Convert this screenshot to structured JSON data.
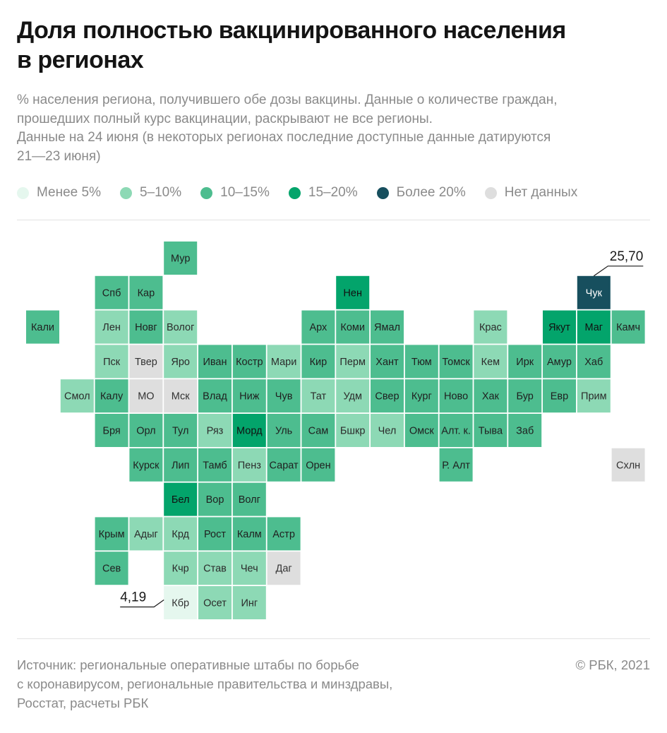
{
  "title_lines": [
    "Доля полностью вакцинированного населения",
    "в регионах"
  ],
  "subtitle_lines": [
    "% населения региона, получившего обе дозы вакцины. Данные о количестве граждан,",
    "прошедших полный курс вакцинации, раскрывают не все регионы.",
    "Данные на 24 июня (в некоторых регионах последние доступные данные датируются",
    "21—23 июня)"
  ],
  "legend": [
    {
      "label": "Менее 5%",
      "color": "#e5f7ee"
    },
    {
      "label": "5–10%",
      "color": "#8dd9b5"
    },
    {
      "label": "10–15%",
      "color": "#4dbd8f"
    },
    {
      "label": "15–20%",
      "color": "#03a46b"
    },
    {
      "label": "Более 20%",
      "color": "#174f5e"
    },
    {
      "label": "Нет данных",
      "color": "#dedede"
    }
  ],
  "chart_data": {
    "type": "heatmap",
    "value_unit": "%",
    "annotations": [
      {
        "region": "Чук",
        "text": "25,70"
      },
      {
        "region": "Кбр",
        "text": "4,19"
      }
    ],
    "cells": [
      {
        "label": "Мур",
        "col": 5,
        "row": 0,
        "cat": 2
      },
      {
        "label": "Спб",
        "col": 3,
        "row": 1,
        "cat": 2
      },
      {
        "label": "Кар",
        "col": 4,
        "row": 1,
        "cat": 2
      },
      {
        "label": "Нен",
        "col": 10,
        "row": 1,
        "cat": 3
      },
      {
        "label": "Чук",
        "col": 17,
        "row": 1,
        "cat": 4
      },
      {
        "label": "Кали",
        "col": 1,
        "row": 2,
        "cat": 2
      },
      {
        "label": "Лен",
        "col": 3,
        "row": 2,
        "cat": 1
      },
      {
        "label": "Новг",
        "col": 4,
        "row": 2,
        "cat": 2
      },
      {
        "label": "Волог",
        "col": 5,
        "row": 2,
        "cat": 1
      },
      {
        "label": "Арх",
        "col": 9,
        "row": 2,
        "cat": 2
      },
      {
        "label": "Коми",
        "col": 10,
        "row": 2,
        "cat": 2
      },
      {
        "label": "Ямал",
        "col": 11,
        "row": 2,
        "cat": 2
      },
      {
        "label": "Крас",
        "col": 14,
        "row": 2,
        "cat": 1
      },
      {
        "label": "Якут",
        "col": 16,
        "row": 2,
        "cat": 3
      },
      {
        "label": "Маг",
        "col": 17,
        "row": 2,
        "cat": 3
      },
      {
        "label": "Камч",
        "col": 18,
        "row": 2,
        "cat": 2
      },
      {
        "label": "Пск",
        "col": 3,
        "row": 3,
        "cat": 1
      },
      {
        "label": "Твер",
        "col": 4,
        "row": 3,
        "cat": 5
      },
      {
        "label": "Яро",
        "col": 5,
        "row": 3,
        "cat": 1
      },
      {
        "label": "Иван",
        "col": 6,
        "row": 3,
        "cat": 2
      },
      {
        "label": "Костр",
        "col": 7,
        "row": 3,
        "cat": 2
      },
      {
        "label": "Мари",
        "col": 8,
        "row": 3,
        "cat": 1
      },
      {
        "label": "Кир",
        "col": 9,
        "row": 3,
        "cat": 2
      },
      {
        "label": "Перм",
        "col": 10,
        "row": 3,
        "cat": 1
      },
      {
        "label": "Хант",
        "col": 11,
        "row": 3,
        "cat": 2
      },
      {
        "label": "Тюм",
        "col": 12,
        "row": 3,
        "cat": 2
      },
      {
        "label": "Томск",
        "col": 13,
        "row": 3,
        "cat": 2
      },
      {
        "label": "Кем",
        "col": 14,
        "row": 3,
        "cat": 1
      },
      {
        "label": "Ирк",
        "col": 15,
        "row": 3,
        "cat": 2
      },
      {
        "label": "Амур",
        "col": 16,
        "row": 3,
        "cat": 2
      },
      {
        "label": "Хаб",
        "col": 17,
        "row": 3,
        "cat": 2
      },
      {
        "label": "Смол",
        "col": 2,
        "row": 4,
        "cat": 1
      },
      {
        "label": "Калу",
        "col": 3,
        "row": 4,
        "cat": 2
      },
      {
        "label": "МО",
        "col": 4,
        "row": 4,
        "cat": 5
      },
      {
        "label": "Мск",
        "col": 5,
        "row": 4,
        "cat": 5
      },
      {
        "label": "Влад",
        "col": 6,
        "row": 4,
        "cat": 2
      },
      {
        "label": "Ниж",
        "col": 7,
        "row": 4,
        "cat": 2
      },
      {
        "label": "Чув",
        "col": 8,
        "row": 4,
        "cat": 2
      },
      {
        "label": "Тат",
        "col": 9,
        "row": 4,
        "cat": 1
      },
      {
        "label": "Удм",
        "col": 10,
        "row": 4,
        "cat": 1
      },
      {
        "label": "Свер",
        "col": 11,
        "row": 4,
        "cat": 2
      },
      {
        "label": "Кург",
        "col": 12,
        "row": 4,
        "cat": 2
      },
      {
        "label": "Ново",
        "col": 13,
        "row": 4,
        "cat": 2
      },
      {
        "label": "Хак",
        "col": 14,
        "row": 4,
        "cat": 2
      },
      {
        "label": "Бур",
        "col": 15,
        "row": 4,
        "cat": 2
      },
      {
        "label": "Евр",
        "col": 16,
        "row": 4,
        "cat": 2
      },
      {
        "label": "Прим",
        "col": 17,
        "row": 4,
        "cat": 1
      },
      {
        "label": "Бря",
        "col": 3,
        "row": 5,
        "cat": 2
      },
      {
        "label": "Орл",
        "col": 4,
        "row": 5,
        "cat": 2
      },
      {
        "label": "Тул",
        "col": 5,
        "row": 5,
        "cat": 2
      },
      {
        "label": "Ряз",
        "col": 6,
        "row": 5,
        "cat": 1
      },
      {
        "label": "Морд",
        "col": 7,
        "row": 5,
        "cat": 3
      },
      {
        "label": "Уль",
        "col": 8,
        "row": 5,
        "cat": 2
      },
      {
        "label": "Сам",
        "col": 9,
        "row": 5,
        "cat": 2
      },
      {
        "label": "Бшкр",
        "col": 10,
        "row": 5,
        "cat": 1
      },
      {
        "label": "Чел",
        "col": 11,
        "row": 5,
        "cat": 1
      },
      {
        "label": "Омск",
        "col": 12,
        "row": 5,
        "cat": 2
      },
      {
        "label": "Алт. к.",
        "col": 13,
        "row": 5,
        "cat": 2
      },
      {
        "label": "Тыва",
        "col": 14,
        "row": 5,
        "cat": 2
      },
      {
        "label": "Заб",
        "col": 15,
        "row": 5,
        "cat": 2
      },
      {
        "label": "Курск",
        "col": 4,
        "row": 6,
        "cat": 2
      },
      {
        "label": "Лип",
        "col": 5,
        "row": 6,
        "cat": 2
      },
      {
        "label": "Тамб",
        "col": 6,
        "row": 6,
        "cat": 2
      },
      {
        "label": "Пенз",
        "col": 7,
        "row": 6,
        "cat": 1
      },
      {
        "label": "Сарат",
        "col": 8,
        "row": 6,
        "cat": 2
      },
      {
        "label": "Орен",
        "col": 9,
        "row": 6,
        "cat": 2
      },
      {
        "label": "Р. Алт",
        "col": 13,
        "row": 6,
        "cat": 2
      },
      {
        "label": "Схлн",
        "col": 18,
        "row": 6,
        "cat": 5
      },
      {
        "label": "Бел",
        "col": 5,
        "row": 7,
        "cat": 3
      },
      {
        "label": "Вор",
        "col": 6,
        "row": 7,
        "cat": 2
      },
      {
        "label": "Волг",
        "col": 7,
        "row": 7,
        "cat": 2
      },
      {
        "label": "Крым",
        "col": 3,
        "row": 8,
        "cat": 2
      },
      {
        "label": "Адыг",
        "col": 4,
        "row": 8,
        "cat": 1
      },
      {
        "label": "Крд",
        "col": 5,
        "row": 8,
        "cat": 1
      },
      {
        "label": "Рост",
        "col": 6,
        "row": 8,
        "cat": 2
      },
      {
        "label": "Калм",
        "col": 7,
        "row": 8,
        "cat": 2
      },
      {
        "label": "Астр",
        "col": 8,
        "row": 8,
        "cat": 2
      },
      {
        "label": "Сев",
        "col": 3,
        "row": 9,
        "cat": 2
      },
      {
        "label": "Кчр",
        "col": 5,
        "row": 9,
        "cat": 1
      },
      {
        "label": "Став",
        "col": 6,
        "row": 9,
        "cat": 1
      },
      {
        "label": "Чеч",
        "col": 7,
        "row": 9,
        "cat": 1
      },
      {
        "label": "Даг",
        "col": 8,
        "row": 9,
        "cat": 5
      },
      {
        "label": "Кбр",
        "col": 5,
        "row": 10,
        "cat": 0
      },
      {
        "label": "Осет",
        "col": 6,
        "row": 10,
        "cat": 1
      },
      {
        "label": "Инг",
        "col": 7,
        "row": 10,
        "cat": 1
      }
    ]
  },
  "source_lines": [
    "Источник:  региональные оперативные штабы по борьбе",
    "с коронавирусом, региональные правительства и минздравы,",
    "Росстат, расчеты РБК"
  ],
  "copyright": "© РБК, 2021"
}
